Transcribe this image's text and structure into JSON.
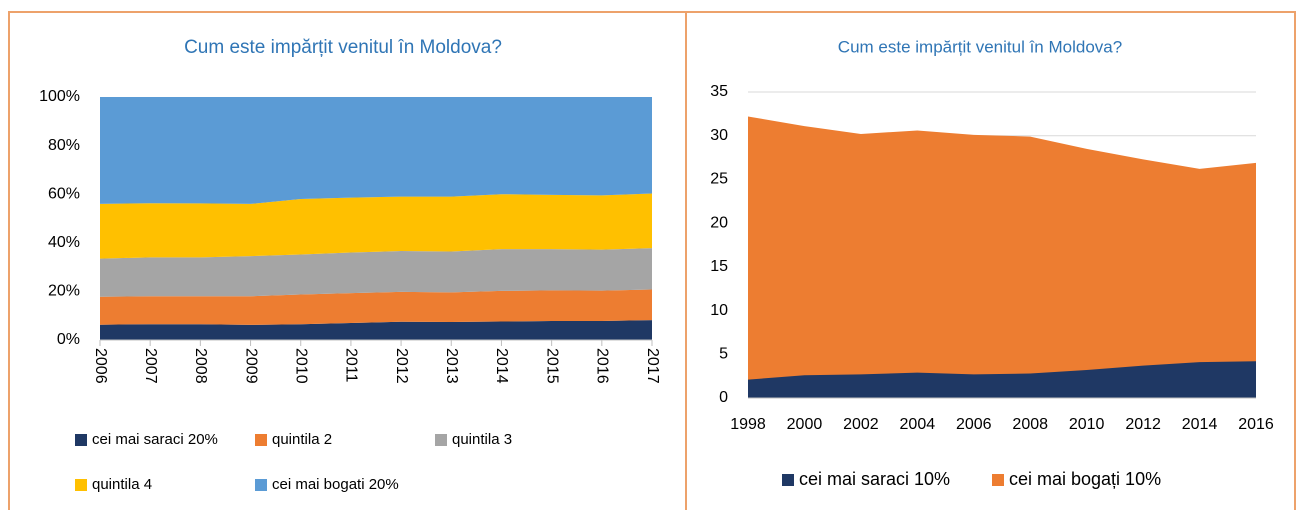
{
  "chart_data": [
    {
      "type": "area",
      "stacked": true,
      "title": "Cum este impărțit venitul în Moldova?",
      "categories": [
        "2006",
        "2007",
        "2008",
        "2009",
        "2010",
        "2011",
        "2012",
        "2013",
        "2014",
        "2015",
        "2016",
        "2017"
      ],
      "series": [
        {
          "name": "cei mai saraci 20%",
          "color": "#1f3864",
          "values": [
            6.3,
            6.5,
            6.5,
            6.2,
            6.5,
            7,
            7.5,
            7.4,
            7.6,
            7.8,
            7.8,
            8.2
          ]
        },
        {
          "name": "quintila 2",
          "color": "#ed7d31",
          "values": [
            11.5,
            11.5,
            11.5,
            11.8,
            12.2,
            12.3,
            12.3,
            12.2,
            12.6,
            12.6,
            12.5,
            12.6
          ]
        },
        {
          "name": "quintila 3",
          "color": "#a5a5a5",
          "values": [
            15.7,
            16,
            16,
            16.5,
            16.5,
            16.7,
            16.8,
            16.8,
            17.2,
            17,
            16.9,
            17
          ]
        },
        {
          "name": "quintila 4",
          "color": "#ffc000",
          "values": [
            22.5,
            22.3,
            22.2,
            21.5,
            22.8,
            22.6,
            22.4,
            22.6,
            22.6,
            22.3,
            22.3,
            22.5
          ]
        },
        {
          "name": "cei mai bogati 20%",
          "color": "#5b9bd5",
          "values": [
            44,
            43.7,
            43.8,
            44,
            42,
            41.4,
            41,
            41,
            40,
            40.3,
            40.5,
            39.7
          ]
        }
      ],
      "ylim": [
        0,
        100
      ],
      "yticks": [
        {
          "value": 0,
          "label": "0%"
        },
        {
          "value": 20,
          "label": "20%"
        },
        {
          "value": 40,
          "label": "40%"
        },
        {
          "value": 60,
          "label": "60%"
        },
        {
          "value": 80,
          "label": "80%"
        },
        {
          "value": 100,
          "label": "100%"
        }
      ],
      "grid": false,
      "legend": "bottom"
    },
    {
      "type": "area",
      "stacked": false,
      "title": "Cum este impărțit venitul în Moldova?",
      "x": [
        1998,
        2000,
        2002,
        2004,
        2006,
        2008,
        2010,
        2012,
        2014,
        2016
      ],
      "series": [
        {
          "name": "cei mai saraci 10%",
          "color": "#1f3864",
          "values": [
            2.1,
            2.6,
            2.7,
            2.9,
            2.7,
            2.8,
            3.2,
            3.7,
            4.1,
            4.2
          ]
        },
        {
          "name": "cei mai bogați 10%",
          "color": "#ed7d31",
          "values": [
            32.2,
            31.1,
            30.2,
            30.6,
            30.1,
            29.9,
            28.5,
            27.3,
            26.2,
            26.9
          ]
        }
      ],
      "xlim": [
        1998,
        2016
      ],
      "xticks": [
        1998,
        2000,
        2002,
        2004,
        2006,
        2008,
        2010,
        2012,
        2014,
        2016
      ],
      "ylim": [
        0,
        35
      ],
      "yticks": [
        0,
        5,
        10,
        15,
        20,
        25,
        30,
        35
      ],
      "grid": true,
      "legend": "bottom"
    }
  ]
}
